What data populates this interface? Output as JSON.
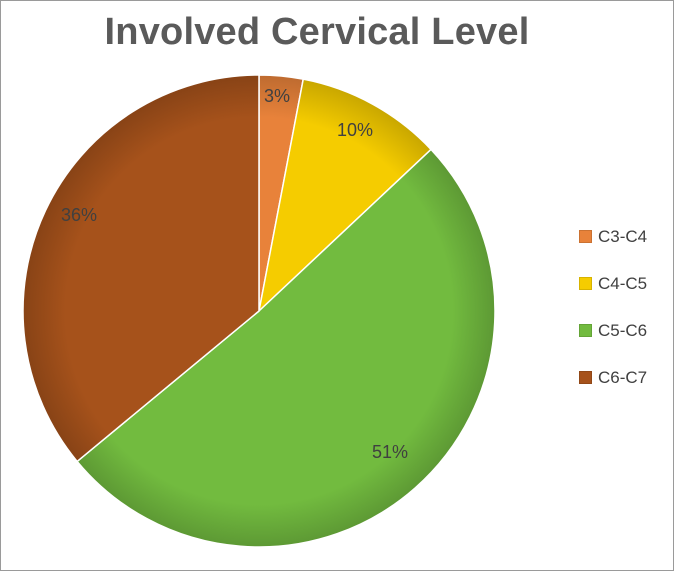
{
  "chart_data": {
    "type": "pie",
    "title": "Involved Cervical Level",
    "categories": [
      "C3-C4",
      "C4-C5",
      "C5-C6",
      "C6-C7"
    ],
    "values": [
      3,
      10,
      51,
      36
    ],
    "data_labels": [
      "3%",
      "10%",
      "51%",
      "36%"
    ],
    "colors": [
      "#e8823a",
      "#f5cc00",
      "#72bb3f",
      "#a6521b"
    ],
    "legend_position": "right"
  }
}
